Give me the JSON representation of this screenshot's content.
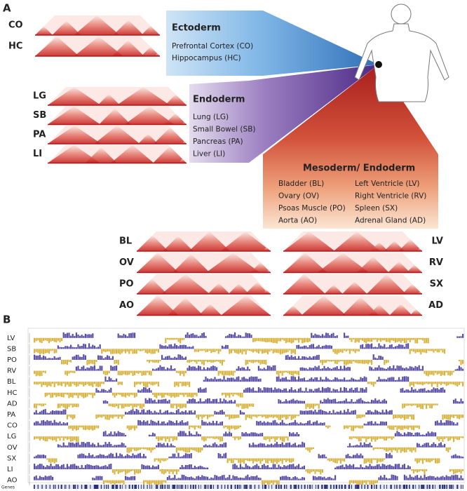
{
  "panels": {
    "a": "A",
    "b": "B"
  },
  "ectoderm": {
    "title": "Ectoderm",
    "items": [
      "Prefrontal Cortex (CO)",
      "Hippocampus (HC)"
    ]
  },
  "endoderm": {
    "title": "Endoderm",
    "items": [
      "Lung (LG)",
      "Small Bowel (SB)",
      "Pancreas (PA)",
      "Liver (LI)"
    ]
  },
  "mesoderm": {
    "title": "Mesoderm/ Endoderm",
    "items_left": [
      "Bladder (BL)",
      "Ovary (OV)",
      "Psoas Muscle (PO)",
      "Aorta (AO)"
    ],
    "items_right": [
      "Left Ventricle (LV)",
      "Right Ventricle (RV)",
      "Spleen (SX)",
      "Adrenal Gland (AD)"
    ]
  },
  "heatmaps": {
    "ectoderm": [
      "CO",
      "HC"
    ],
    "endoderm": [
      "LG",
      "SB",
      "PA",
      "LI"
    ],
    "left": [
      "BL",
      "OV",
      "PO",
      "AO"
    ],
    "right": [
      "LV",
      "RV",
      "SX",
      "AD"
    ]
  },
  "tracks": {
    "labels": [
      "LV",
      "SB",
      "PO",
      "RV",
      "BL",
      "HC",
      "AD",
      "PA",
      "CO",
      "LG",
      "OV",
      "SX",
      "LI",
      "AO"
    ],
    "genes_label": "Genes"
  }
}
